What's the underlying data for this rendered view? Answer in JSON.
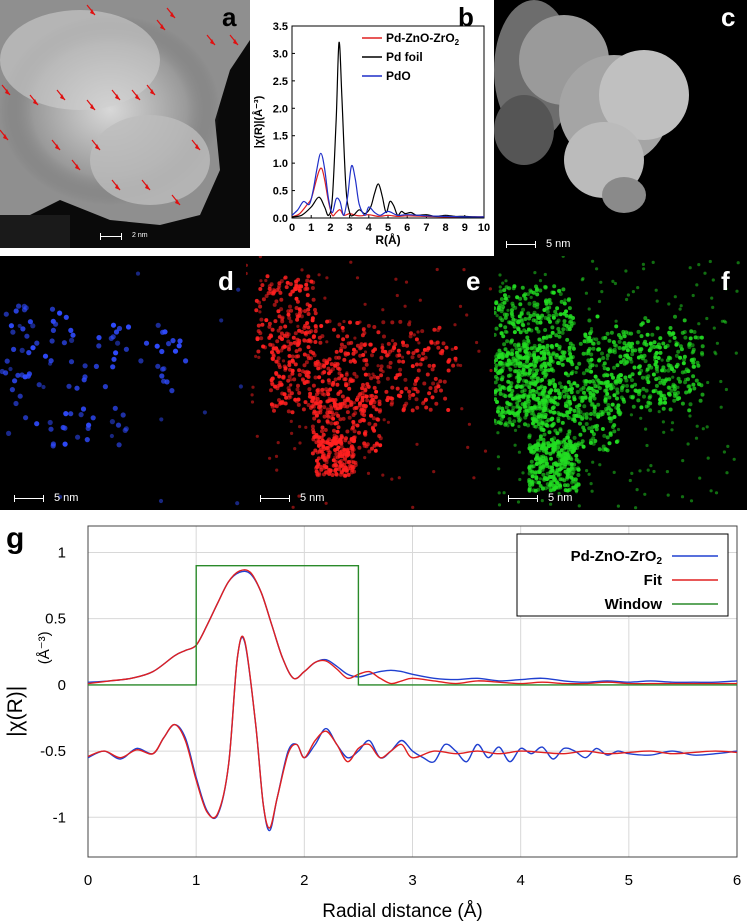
{
  "panels": {
    "a": {
      "label": "a",
      "scale_text": "2 nm"
    },
    "b": {
      "label": "b"
    },
    "c": {
      "label": "c",
      "scale_text": "5 nm"
    },
    "d": {
      "label": "d",
      "scale_text": "5 nm",
      "dot_color": "#2f4bff"
    },
    "e": {
      "label": "e",
      "scale_text": "5 nm",
      "dot_color": "#ff2020"
    },
    "f": {
      "label": "f",
      "scale_text": "5 nm",
      "dot_color": "#22dd22"
    },
    "g": {
      "label": "g"
    }
  },
  "chart_data": [
    {
      "id": "b",
      "type": "line",
      "xlabel": "R(Å)",
      "ylabel": "|χ(R)|(Å⁻³)",
      "xlim": [
        0,
        10
      ],
      "ylim": [
        0,
        3.5
      ],
      "xticks": [
        "0",
        "1",
        "2",
        "3",
        "4",
        "5",
        "6",
        "7",
        "8",
        "9",
        "10"
      ],
      "yticks": [
        "0.0",
        "0.5",
        "1.0",
        "1.5",
        "2.0",
        "2.5",
        "3.0",
        "3.5"
      ],
      "legend_position": "top-right",
      "grid": false,
      "series": [
        {
          "name": "Pd-ZnO-ZrO2",
          "name_main": "Pd-ZnO-ZrO",
          "name_sub": "2",
          "color": "#e02020",
          "x": [
            0.0,
            0.4,
            0.8,
            1.0,
            1.2,
            1.4,
            1.55,
            1.7,
            1.9,
            2.1,
            2.3,
            2.5,
            2.7,
            3.0,
            3.3,
            3.6,
            4.0,
            4.5,
            5.0,
            5.5,
            6.0,
            7.0,
            8.0,
            9.0,
            10.0
          ],
          "y": [
            0.02,
            0.08,
            0.25,
            0.35,
            0.6,
            0.85,
            0.9,
            0.7,
            0.3,
            0.05,
            0.1,
            0.15,
            0.05,
            0.08,
            0.05,
            0.04,
            0.06,
            0.03,
            0.05,
            0.03,
            0.04,
            0.03,
            0.02,
            0.02,
            0.02
          ]
        },
        {
          "name": "Pd foil",
          "color": "#000000",
          "x": [
            0.0,
            0.5,
            1.0,
            1.4,
            1.7,
            1.9,
            2.1,
            2.3,
            2.45,
            2.6,
            2.8,
            3.0,
            3.2,
            3.5,
            3.8,
            4.1,
            4.3,
            4.5,
            4.7,
            4.9,
            5.1,
            5.3,
            5.5,
            5.7,
            5.9,
            6.2,
            6.5,
            7.0,
            7.5,
            8.0,
            8.5,
            9.0,
            9.5,
            10.0
          ],
          "y": [
            0.02,
            0.05,
            0.2,
            0.38,
            0.2,
            0.05,
            0.35,
            1.8,
            3.2,
            2.2,
            0.6,
            0.1,
            0.05,
            0.15,
            0.08,
            0.2,
            0.45,
            0.62,
            0.4,
            0.1,
            0.3,
            0.22,
            0.05,
            0.12,
            0.08,
            0.1,
            0.05,
            0.06,
            0.03,
            0.05,
            0.03,
            0.03,
            0.02,
            0.02
          ]
        },
        {
          "name": "PdO",
          "color": "#1f2fc8",
          "x": [
            0.0,
            0.3,
            0.6,
            0.9,
            1.1,
            1.3,
            1.5,
            1.7,
            1.9,
            2.1,
            2.3,
            2.5,
            2.7,
            2.9,
            3.1,
            3.3,
            3.5,
            3.8,
            4.0,
            4.3,
            4.6,
            5.0,
            5.5,
            6.0,
            7.0,
            8.0,
            9.0,
            10.0
          ],
          "y": [
            0.05,
            0.15,
            0.3,
            0.25,
            0.5,
            0.9,
            1.18,
            0.9,
            0.35,
            0.1,
            0.35,
            0.3,
            0.05,
            0.4,
            0.95,
            0.7,
            0.25,
            0.05,
            0.2,
            0.1,
            0.05,
            0.12,
            0.05,
            0.06,
            0.04,
            0.03,
            0.02,
            0.02
          ]
        }
      ]
    },
    {
      "id": "g",
      "type": "line",
      "xlabel": "Radial distance  (Å)",
      "ylabel": "|χ(R)|",
      "y_unit": "(Å⁻³)",
      "xlim": [
        0,
        6
      ],
      "ylim": [
        -1.3,
        1.2
      ],
      "xticks": [
        "0",
        "1",
        "2",
        "3",
        "4",
        "5",
        "6"
      ],
      "yticks": [
        "-1",
        "-0.5",
        "0",
        "0.5",
        "1"
      ],
      "grid": true,
      "legend_position": "top-right",
      "series": [
        {
          "name": "Pd-ZnO-ZrO2",
          "name_main": "Pd-ZnO-ZrO",
          "name_sub": "2",
          "color": "#2040d0",
          "part": "magnitude",
          "x": [
            0,
            0.2,
            0.4,
            0.6,
            0.8,
            0.9,
            1.0,
            1.1,
            1.2,
            1.3,
            1.4,
            1.5,
            1.6,
            1.7,
            1.8,
            1.9,
            2.0,
            2.1,
            2.2,
            2.3,
            2.4,
            2.5,
            2.6,
            2.7,
            2.8,
            2.9,
            3.0,
            3.2,
            3.4,
            3.6,
            3.8,
            4.0,
            4.2,
            4.4,
            4.6,
            4.8,
            5.0,
            5.2,
            5.4,
            5.6,
            5.8,
            6.0
          ],
          "y": [
            0.02,
            0.03,
            0.05,
            0.1,
            0.22,
            0.26,
            0.3,
            0.45,
            0.62,
            0.78,
            0.85,
            0.84,
            0.7,
            0.45,
            0.2,
            0.05,
            0.1,
            0.17,
            0.19,
            0.14,
            0.08,
            0.06,
            0.08,
            0.1,
            0.11,
            0.1,
            0.08,
            0.05,
            0.04,
            0.05,
            0.03,
            0.04,
            0.05,
            0.03,
            0.02,
            0.03,
            0.02,
            0.03,
            0.02,
            0.02,
            0.02,
            0.03
          ]
        },
        {
          "name": "Pd-ZnO-ZrO2",
          "color": "#2040d0",
          "part": "real",
          "legend": false,
          "x": [
            0,
            0.15,
            0.3,
            0.45,
            0.6,
            0.7,
            0.8,
            0.9,
            1.0,
            1.1,
            1.2,
            1.3,
            1.38,
            1.45,
            1.55,
            1.62,
            1.68,
            1.75,
            1.85,
            1.93,
            2.0,
            2.1,
            2.2,
            2.3,
            2.4,
            2.5,
            2.6,
            2.7,
            2.8,
            2.9,
            3.0,
            3.1,
            3.2,
            3.3,
            3.4,
            3.5,
            3.6,
            3.7,
            3.8,
            3.9,
            4.0,
            4.1,
            4.2,
            4.3,
            4.4,
            4.5,
            4.6,
            4.7,
            4.8,
            4.9,
            5.0,
            5.2,
            5.4,
            5.6,
            5.8,
            6.0
          ],
          "y": [
            -0.55,
            -0.5,
            -0.56,
            -0.48,
            -0.52,
            -0.4,
            -0.3,
            -0.4,
            -0.7,
            -0.95,
            -0.98,
            -0.6,
            0.2,
            0.32,
            -0.3,
            -0.9,
            -1.1,
            -0.85,
            -0.5,
            -0.45,
            -0.55,
            -0.45,
            -0.33,
            -0.45,
            -0.55,
            -0.5,
            -0.42,
            -0.55,
            -0.5,
            -0.42,
            -0.5,
            -0.55,
            -0.58,
            -0.45,
            -0.5,
            -0.58,
            -0.45,
            -0.55,
            -0.47,
            -0.58,
            -0.48,
            -0.52,
            -0.47,
            -0.56,
            -0.48,
            -0.5,
            -0.55,
            -0.48,
            -0.53,
            -0.5,
            -0.52,
            -0.53,
            -0.5,
            -0.53,
            -0.52,
            -0.5
          ]
        },
        {
          "name": "Fit",
          "color": "#e02020",
          "part": "magnitude",
          "x": [
            0,
            0.2,
            0.4,
            0.6,
            0.8,
            0.9,
            1.0,
            1.1,
            1.2,
            1.3,
            1.4,
            1.5,
            1.6,
            1.7,
            1.8,
            1.9,
            2.0,
            2.1,
            2.2,
            2.3,
            2.4,
            2.5,
            2.6,
            2.7,
            2.8,
            2.9,
            3.0,
            3.2,
            3.4,
            3.6,
            3.8,
            4.0,
            4.2,
            4.4,
            4.6,
            4.8,
            5.0,
            5.2,
            5.4,
            5.6,
            5.8,
            6.0
          ],
          "y": [
            0.01,
            0.03,
            0.05,
            0.1,
            0.22,
            0.26,
            0.3,
            0.45,
            0.62,
            0.78,
            0.86,
            0.85,
            0.7,
            0.45,
            0.2,
            0.05,
            0.1,
            0.17,
            0.18,
            0.12,
            0.05,
            0.08,
            0.1,
            0.05,
            0.01,
            0.03,
            0.05,
            0.03,
            0.01,
            0.03,
            0.02,
            0.01,
            0.02,
            0.01,
            0.01,
            0.02,
            0.01,
            0.01,
            0.01,
            0.01,
            0.01,
            0.01
          ]
        },
        {
          "name": "Fit",
          "color": "#e02020",
          "part": "real",
          "legend": false,
          "x": [
            0,
            0.15,
            0.3,
            0.45,
            0.6,
            0.7,
            0.8,
            0.9,
            1.0,
            1.1,
            1.2,
            1.3,
            1.38,
            1.45,
            1.55,
            1.62,
            1.68,
            1.75,
            1.85,
            1.93,
            2.0,
            2.1,
            2.2,
            2.3,
            2.4,
            2.5,
            2.6,
            2.7,
            2.8,
            2.9,
            3.0,
            3.2,
            3.4,
            3.6,
            3.8,
            4.0,
            4.2,
            4.4,
            4.6,
            4.8,
            5.0,
            5.2,
            5.4,
            5.6,
            5.8,
            6.0
          ],
          "y": [
            -0.54,
            -0.5,
            -0.55,
            -0.49,
            -0.52,
            -0.4,
            -0.3,
            -0.42,
            -0.72,
            -0.96,
            -0.97,
            -0.6,
            0.2,
            0.33,
            -0.3,
            -0.9,
            -1.08,
            -0.85,
            -0.52,
            -0.45,
            -0.55,
            -0.42,
            -0.35,
            -0.45,
            -0.58,
            -0.48,
            -0.45,
            -0.55,
            -0.5,
            -0.45,
            -0.55,
            -0.5,
            -0.52,
            -0.5,
            -0.52,
            -0.5,
            -0.51,
            -0.52,
            -0.5,
            -0.52,
            -0.51,
            -0.5,
            -0.52,
            -0.51,
            -0.5,
            -0.51
          ]
        },
        {
          "name": "Window",
          "color": "#2a8a2a",
          "part": "window",
          "x": [
            0,
            1.0,
            1.0,
            1.0,
            2.5,
            2.5,
            2.5,
            6.0
          ],
          "y": [
            0,
            0,
            0.9,
            0.9,
            0.9,
            0.9,
            0,
            0
          ]
        }
      ]
    }
  ]
}
